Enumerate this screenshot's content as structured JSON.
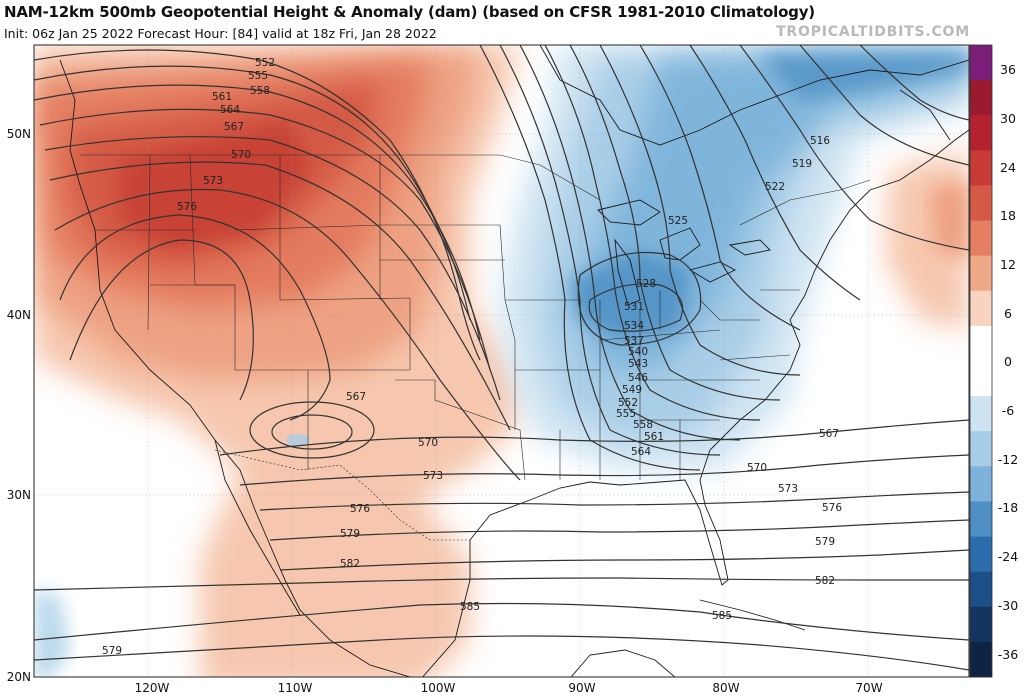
{
  "header": {
    "title": "NAM-12km 500mb Geopotential Height & Anomaly (dam) (based on CFSR 1981-2010 Climatology)",
    "subtitle": "Init: 06z Jan 25 2022   Forecast Hour: [84]   valid at 18z Fri, Jan 28 2022",
    "brand": "TROPICALTIDBITS.COM"
  },
  "colorbar": {
    "labels": [
      "36",
      "30",
      "24",
      "18",
      "12",
      "6",
      "0",
      "-6",
      "-12",
      "-18",
      "-24",
      "-30",
      "-36"
    ],
    "colors": [
      "#7b1e7a",
      "#9a1b2e",
      "#b4212f",
      "#c73a35",
      "#d55a45",
      "#e47f62",
      "#f0a988",
      "#f9d3bf",
      "#ffffff",
      "#ffffff",
      "#cde3f1",
      "#a8cde6",
      "#7db3da",
      "#4e90c6",
      "#2c6eab",
      "#1c4f88",
      "#14355f",
      "#0f2444"
    ]
  },
  "axes": {
    "lat_labels": [
      "50N",
      "40N",
      "30N",
      "20N"
    ],
    "lon_labels": [
      "120W",
      "110W",
      "100W",
      "90W",
      "80W",
      "70W"
    ]
  },
  "contours": {
    "labels_west": [
      "552",
      "555",
      "558",
      "561",
      "564",
      "567",
      "570",
      "573",
      "576"
    ],
    "labels_east": [
      "516",
      "519",
      "522",
      "525"
    ],
    "labels_trough": [
      "528",
      "531",
      "534",
      "537",
      "540",
      "543",
      "546",
      "549",
      "552",
      "555",
      "558",
      "561",
      "564"
    ],
    "labels_south": [
      "567",
      "570",
      "573",
      "576",
      "579",
      "582",
      "585",
      "567",
      "570",
      "573",
      "576",
      "579",
      "582",
      "585",
      "579"
    ]
  },
  "colors": {
    "coast": "#1a1a1a",
    "contour": "#333333",
    "text": "#111111",
    "brand": "#b9b9b9"
  }
}
